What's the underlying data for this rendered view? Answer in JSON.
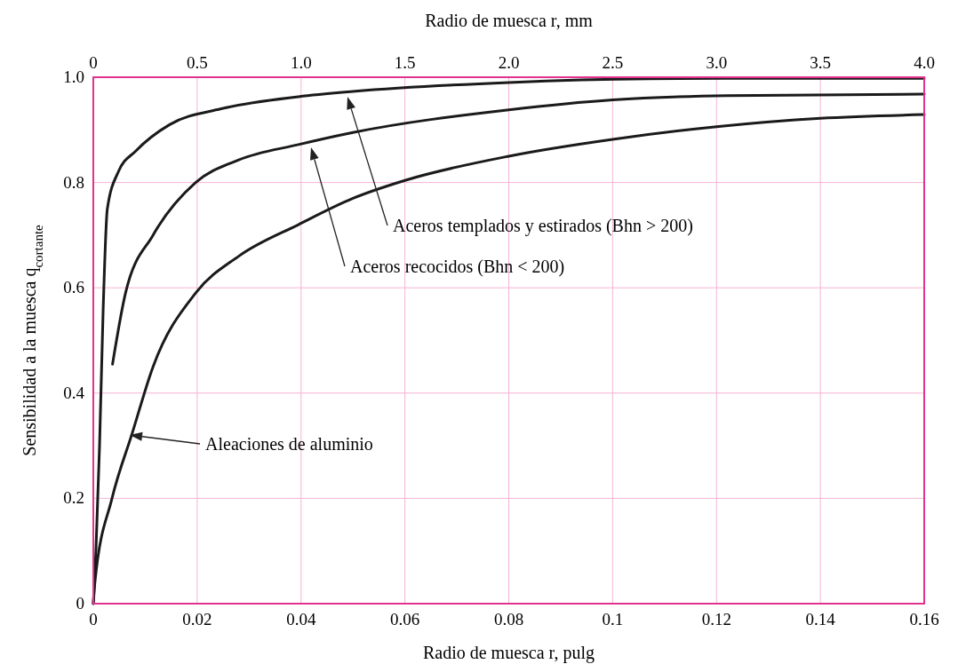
{
  "chart_data": {
    "type": "line",
    "xlabel": "Radio de muesca r, pulg",
    "x2label": "Radio de muesca r, mm",
    "ylabel": "Sensibilidad a la muesca q$_{cortante}$",
    "xlim": [
      0,
      0.16
    ],
    "xticks": [
      0,
      0.02,
      0.04,
      0.06,
      0.08,
      0.1,
      0.12,
      0.14,
      0.16
    ],
    "x2lim": [
      0,
      4.0
    ],
    "x2ticks": [
      0,
      0.5,
      {
        "value": 1,
        "label": "1.0"
      },
      1.5,
      {
        "value": 2,
        "label": "2.0"
      },
      2.5,
      {
        "value": 3,
        "label": "3.0"
      },
      3.5,
      {
        "value": 4,
        "label": "4.0"
      }
    ],
    "ylim": [
      0,
      1.0
    ],
    "yticks": [
      0,
      0.2,
      0.4,
      0.6,
      0.8,
      {
        "value": 1,
        "label": "1.0"
      }
    ],
    "grid": true,
    "series": [
      {
        "color": "#1a1a1a",
        "x": [
          0,
          0.0005,
          0.0012,
          0.0019,
          0.0027,
          0.0048,
          0.0082,
          0.0147,
          0.0246,
          0.0395,
          0.05,
          0.08,
          0.107,
          0.13,
          0.16
        ],
        "values": [
          0,
          0.1,
          0.3,
          0.56,
          0.75,
          0.82,
          0.86,
          0.91,
          0.94,
          0.963,
          0.973,
          0.99,
          0.997,
          0.998,
          0.998
        ]
      },
      {
        "color": "#1a1a1a",
        "x": [
          0.0037,
          0.0062,
          0.0115,
          0.0197,
          0.028,
          0.0395,
          0.05,
          0.08,
          0.1,
          0.122,
          0.16
        ],
        "values": [
          0.455,
          0.59,
          0.7,
          0.8,
          0.843,
          0.872,
          0.895,
          0.938,
          0.957,
          0.965,
          0.968
        ]
      },
      {
        "color": "#1a1a1a",
        "x": [
          0,
          0.0003,
          0.0036,
          0.0075,
          0.0115,
          0.0197,
          0.028,
          0.0395,
          0.05,
          0.06,
          0.08,
          0.1,
          0.12,
          0.14,
          0.16
        ],
        "values": [
          0,
          0.04,
          0.2,
          0.324,
          0.45,
          0.59,
          0.66,
          0.72,
          0.77,
          0.804,
          0.85,
          0.882,
          0.906,
          0.922,
          0.929
        ]
      }
    ],
    "annotations": [
      "Aceros templados y estirados (Bhn > 200)",
      "Aceros recocidos (Bhn < 200)",
      "Aleaciones de aluminio"
    ]
  }
}
